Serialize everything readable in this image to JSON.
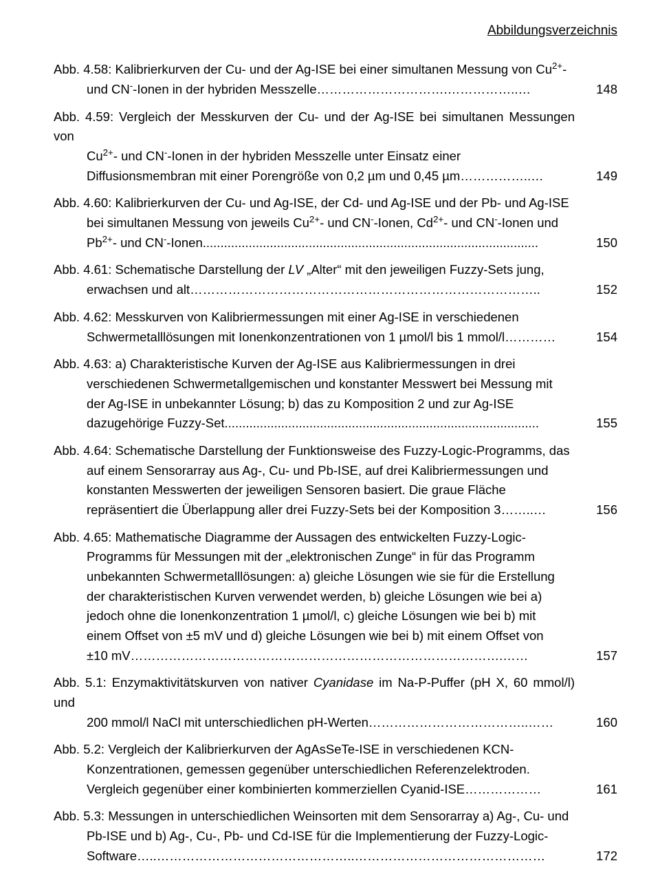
{
  "header": "Abbildungsverzeichnis",
  "entries": [
    {
      "first": "Abb. 4.58: Kalibrierkurven der Cu- und der Ag-ISE bei einer simultanen Messung von Cu<sup>2+</sup>-",
      "cont": [
        "und CN<sup>-</sup>-Ionen in der hybriden Messzelle………………………….……………..…"
      ],
      "page": "148"
    },
    {
      "first": "Abb. 4.59: Vergleich der Messkurven der Cu- und der Ag-ISE bei simultanen Messungen von",
      "cont": [
        "Cu<sup>2+</sup>- und CN<sup>-</sup>-Ionen in der hybriden Messzelle unter Einsatz einer",
        "Diffusionsmembran mit einer Porengröße von 0,2 µm und 0,45 µm……………..…"
      ],
      "page": "149"
    },
    {
      "first": "Abb. 4.60: Kalibrierkurven der Cu- und Ag-ISE, der Cd- und Ag-ISE und der Pb- und Ag-ISE",
      "cont": [
        "bei simultanen Messung von jeweils Cu<sup>2+</sup>- und CN<sup>-</sup>-Ionen, Cd<sup>2+</sup>- und CN<sup>-</sup>-Ionen und",
        "Pb<sup>2+</sup>- und CN<sup>-</sup>-Ionen..............................................................................................."
      ],
      "page": "150"
    },
    {
      "first": "Abb. 4.61: Schematische Darstellung der <span class=\"italic\">LV</span> „Alter“ mit den jeweiligen Fuzzy-Sets jung,",
      "cont": [
        "erwachsen und alt……………………………………………………………………….."
      ],
      "page": "152"
    },
    {
      "first": "Abb. 4.62: Messkurven von Kalibriermessungen mit einer Ag-ISE in verschiedenen",
      "cont": [
        "Schwermetalllösungen mit Ionenkonzentrationen von 1 µmol/l bis 1 mmol/l…………"
      ],
      "page": "154"
    },
    {
      "first": "Abb. 4.63: a) Charakteristische Kurven der Ag-ISE aus Kalibriermessungen in drei",
      "cont": [
        "verschiedenen Schwermetallgemischen und konstanter Messwert bei Messung mit",
        "der Ag-ISE in unbekannter Lösung; b) das zu Komposition 2 und zur Ag-ISE",
        "dazugehörige Fuzzy-Set........................................................................................."
      ],
      "page": "155"
    },
    {
      "first": "Abb. 4.64: Schematische Darstellung der Funktionsweise des Fuzzy-Logic-Programms, das",
      "cont": [
        "auf einem Sensorarray aus Ag-, Cu- und Pb-ISE, auf drei Kalibriermessungen und",
        "konstanten Messwerten der jeweiligen Sensoren basiert. Die graue Fläche",
        "repräsentiert die Überlappung aller drei Fuzzy-Sets bei der Komposition 3……..…"
      ],
      "page": "156"
    },
    {
      "first": "Abb. 4.65: Mathematische Diagramme der Aussagen des entwickelten Fuzzy-Logic-",
      "cont": [
        "Programms für Messungen mit der „elektronischen Zunge“ in für das Programm",
        "unbekannten Schwermetalllösungen: a) gleiche Lösungen wie sie für die Erstellung",
        "der charakteristischen Kurven verwendet werden, b) gleiche Lösungen wie bei a)",
        "jedoch ohne die Ionenkonzentration 1 µmol/l, c) gleiche Lösungen wie bei b) mit",
        "einem Offset von ±5 mV und d) gleiche Lösungen wie bei b) mit einem Offset von",
        "±10 mV…………………………………………………………………………….……"
      ],
      "page": "157"
    },
    {
      "first": "Abb. 5.1: Enzymaktivitätskurven von nativer <span class=\"italic\">Cyanidase</span> im Na-P-Puffer (pH X, 60 mmol/l) und",
      "cont": [
        "200 mmol/l NaCl mit unterschiedlichen pH-Werten………………………………..……"
      ],
      "page": "160"
    },
    {
      "first": "Abb. 5.2: Vergleich der Kalibrierkurven der AgAsSeTe-ISE in verschiedenen KCN-",
      "cont": [
        "Konzentrationen, gemessen gegenüber unterschiedlichen Referenzelektroden.",
        "Vergleich gegenüber einer kombinierten kommerziellen Cyanid-ISE………………"
      ],
      "page": "161"
    },
    {
      "first": "Abb. 5.3: Messungen in unterschiedlichen Weinsorten mit dem Sensorarray a) Ag-, Cu- und",
      "cont": [
        "Pb-ISE und b) Ag-, Cu-, Pb- und Cd-ISE für die Implementierung der Fuzzy-Logic-",
        "Software…..………………………………………..………………………………………"
      ],
      "page": "172"
    }
  ]
}
